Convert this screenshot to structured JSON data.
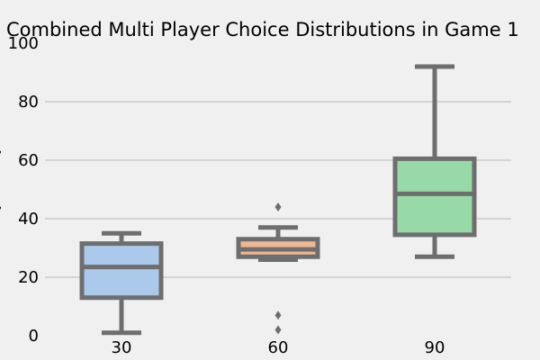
{
  "chart_data": {
    "type": "box",
    "title": "Combined Multi Player Choice Distributions in Game 1",
    "xlabel": "",
    "ylabel": "",
    "ylim": [
      0,
      100
    ],
    "yticks": [
      0,
      20,
      40,
      60,
      80,
      100
    ],
    "grid": true,
    "categories": [
      "30",
      "60",
      "90"
    ],
    "boxes": [
      {
        "category": "30",
        "whisker_low": 1,
        "q1": 13,
        "median": 23.5,
        "q3": 31.5,
        "whisker_high": 35,
        "outliers": [],
        "color": "#abc9ea"
      },
      {
        "category": "60",
        "whisker_low": 26,
        "q1": 27,
        "median": 29.5,
        "q3": 33,
        "whisker_high": 37,
        "outliers": [
          44,
          7,
          2
        ],
        "color": "#efb792"
      },
      {
        "category": "90",
        "whisker_low": 27,
        "q1": 34.5,
        "median": 48.5,
        "q3": 60.5,
        "whisker_high": 92,
        "outliers": [],
        "color": "#98daa7"
      }
    ],
    "colors": {
      "background": "#f0f0f0",
      "grid": "#cbcbcb",
      "box_edge": "#6e6e6e"
    }
  }
}
